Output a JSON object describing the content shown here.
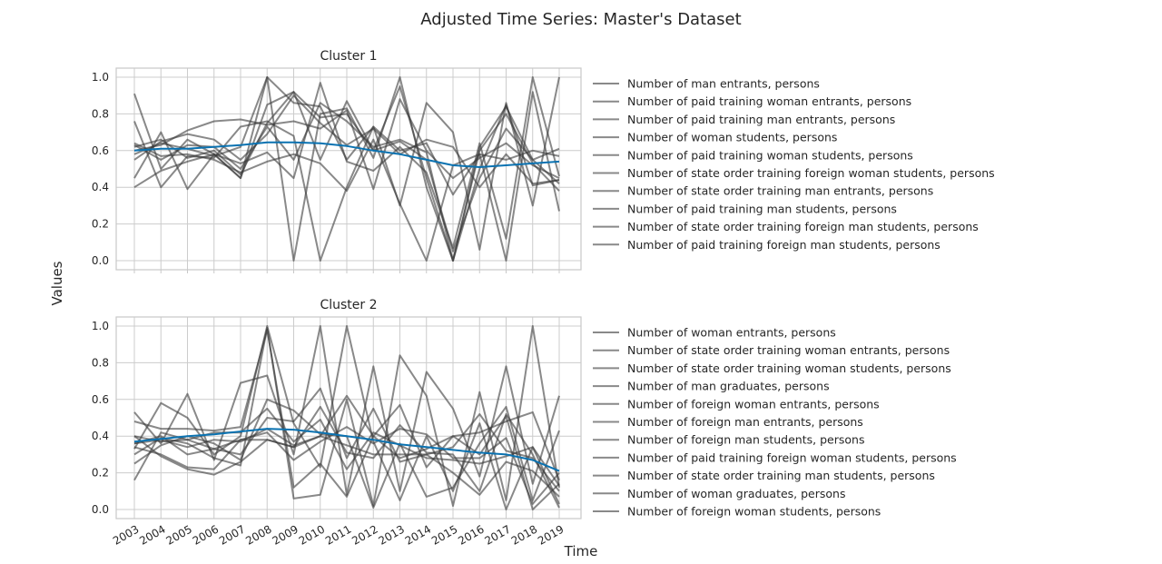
{
  "title": "Adjusted Time Series: Master's Dataset",
  "xlabel": "Time",
  "ylabel": "Values",
  "colors": {
    "series": "#3a3a3a",
    "mean": "#0a72b1",
    "grid": "#cccccc",
    "frame": "#c8c8c8"
  },
  "chart_data": [
    {
      "type": "line",
      "title": "Cluster 1",
      "x": [
        2003,
        2004,
        2005,
        2006,
        2007,
        2008,
        2009,
        2010,
        2011,
        2012,
        2013,
        2014,
        2015,
        2016,
        2017,
        2018,
        2019
      ],
      "xlim": [
        2003,
        2019
      ],
      "ylim": [
        0.0,
        1.0
      ],
      "yticks": [
        0.0,
        0.2,
        0.4,
        0.6,
        0.8,
        1.0
      ],
      "grid": true,
      "legend": "right",
      "series": [
        {
          "name": "Number of man entrants, persons",
          "values": [
            0.62,
            0.66,
            0.56,
            0.6,
            0.47,
            0.75,
            0.92,
            0.78,
            0.8,
            0.6,
            0.65,
            0.55,
            0.05,
            0.45,
            0.72,
            0.55,
            0.61
          ]
        },
        {
          "name": "Number of paid training woman entrants, persons",
          "values": [
            0.45,
            0.7,
            0.39,
            0.58,
            0.45,
            1.0,
            0.0,
            0.8,
            0.83,
            0.56,
            1.0,
            0.4,
            0.0,
            0.6,
            0.8,
            0.53,
            0.38
          ]
        },
        {
          "name": "Number of paid training man entrants, persons",
          "values": [
            0.91,
            0.5,
            0.66,
            0.58,
            0.45,
            0.85,
            0.92,
            0.55,
            0.87,
            0.6,
            0.95,
            0.45,
            0.0,
            0.5,
            0.85,
            0.41,
            0.44
          ]
        },
        {
          "name": "Number of woman students, persons",
          "values": [
            0.76,
            0.4,
            0.57,
            0.56,
            0.73,
            0.76,
            0.68,
            0.0,
            0.4,
            0.73,
            0.3,
            0.86,
            0.7,
            0.06,
            0.86,
            0.3,
            1.0
          ]
        },
        {
          "name": "Number of paid training woman students, persons",
          "values": [
            0.64,
            0.57,
            0.58,
            0.55,
            0.48,
            0.54,
            0.58,
            0.53,
            0.38,
            0.66,
            0.31,
            0.0,
            0.52,
            0.58,
            0.0,
            0.92,
            0.27
          ]
        },
        {
          "name": "Number of state order training foreign woman students, persons",
          "values": [
            0.4,
            0.49,
            0.54,
            0.58,
            0.53,
            0.59,
            0.45,
            0.97,
            0.54,
            0.49,
            0.62,
            0.48,
            0.07,
            0.64,
            0.12,
            1.0,
            0.46
          ]
        },
        {
          "name": "Number of state order training man entrants, persons",
          "values": [
            0.58,
            0.64,
            0.61,
            0.57,
            0.62,
            1.0,
            0.86,
            0.84,
            0.55,
            0.73,
            0.6,
            0.64,
            0.36,
            0.58,
            0.55,
            0.6,
            0.57
          ]
        },
        {
          "name": "Number of paid training man students, persons",
          "values": [
            0.6,
            0.63,
            0.71,
            0.76,
            0.77,
            0.74,
            0.76,
            0.72,
            0.82,
            0.39,
            0.88,
            0.6,
            0.45,
            0.56,
            0.64,
            0.52,
            0.45
          ]
        },
        {
          "name": "Number of state order training foreign man students, persons",
          "values": [
            0.55,
            0.65,
            0.69,
            0.66,
            0.55,
            0.69,
            0.9,
            0.75,
            0.63,
            0.72,
            0.58,
            0.66,
            0.62,
            0.4,
            0.58,
            0.42,
            0.44
          ]
        },
        {
          "name": "Number of paid training foreign man students, persons",
          "values": [
            0.63,
            0.55,
            0.63,
            0.62,
            0.5,
            0.73,
            0.55,
            0.86,
            0.76,
            0.62,
            0.66,
            0.59,
            0.0,
            0.62,
            0.84,
            0.55,
            0.42
          ]
        }
      ],
      "mean": [
        0.6,
        0.61,
        0.61,
        0.62,
        0.63,
        0.645,
        0.645,
        0.64,
        0.625,
        0.6,
        0.58,
        0.55,
        0.52,
        0.51,
        0.52,
        0.53,
        0.54
      ]
    },
    {
      "type": "line",
      "title": "Cluster 2",
      "x": [
        2003,
        2004,
        2005,
        2006,
        2007,
        2008,
        2009,
        2010,
        2011,
        2012,
        2013,
        2014,
        2015,
        2016,
        2017,
        2018,
        2019
      ],
      "xlim": [
        2003,
        2019
      ],
      "ylim": [
        0.0,
        1.0
      ],
      "yticks": [
        0.0,
        0.2,
        0.4,
        0.6,
        0.8,
        1.0
      ],
      "grid": true,
      "legend": "right",
      "series": [
        {
          "name": "Number of woman entrants, persons",
          "values": [
            0.33,
            0.58,
            0.5,
            0.3,
            0.4,
            1.0,
            0.47,
            0.23,
            1.0,
            0.37,
            0.05,
            0.4,
            0.1,
            0.47,
            0.0,
            0.34,
            0.03
          ]
        },
        {
          "name": "Number of state order training woman entrants, persons",
          "values": [
            0.48,
            0.44,
            0.44,
            0.43,
            0.45,
            0.98,
            0.12,
            0.25,
            0.07,
            0.4,
            0.28,
            0.33,
            0.4,
            0.3,
            0.51,
            0.0,
            0.14
          ]
        },
        {
          "name": "Number of state order training woman students, persons",
          "values": [
            0.53,
            0.36,
            0.63,
            0.27,
            0.69,
            0.73,
            0.3,
            1.0,
            0.08,
            0.78,
            0.1,
            0.75,
            0.55,
            0.18,
            0.78,
            0.14,
            0.62
          ]
        },
        {
          "name": "Number of man graduates, persons",
          "values": [
            0.3,
            0.39,
            0.36,
            0.28,
            0.24,
            0.99,
            0.06,
            0.08,
            0.6,
            0.02,
            0.84,
            0.62,
            0.02,
            0.64,
            0.05,
            1.0,
            0.12
          ]
        },
        {
          "name": "Number of foreign woman entrants, persons",
          "values": [
            0.16,
            0.42,
            0.38,
            0.33,
            0.3,
            0.5,
            0.48,
            0.66,
            0.28,
            0.55,
            0.26,
            0.3,
            0.34,
            0.52,
            0.32,
            0.28,
            0.1
          ]
        },
        {
          "name": "Number of foreign man entrants, persons",
          "values": [
            0.36,
            0.38,
            0.34,
            0.38,
            0.37,
            0.44,
            0.35,
            0.4,
            0.62,
            0.4,
            0.57,
            0.23,
            0.4,
            0.42,
            0.48,
            0.53,
            0.16
          ]
        },
        {
          "name": "Number of foreign man students, persons",
          "values": [
            0.25,
            0.35,
            0.4,
            0.36,
            0.27,
            0.6,
            0.54,
            0.41,
            0.4,
            0.01,
            0.36,
            0.07,
            0.12,
            0.36,
            0.56,
            0.05,
            0.43
          ]
        },
        {
          "name": "Number of paid training foreign woman students, persons",
          "values": [
            0.34,
            0.3,
            0.23,
            0.22,
            0.38,
            0.38,
            0.34,
            0.56,
            0.31,
            0.28,
            0.46,
            0.31,
            0.3,
            0.1,
            0.52,
            0.3,
            0.01
          ]
        },
        {
          "name": "Number of state order training man students, persons",
          "values": [
            0.4,
            0.37,
            0.38,
            0.42,
            0.42,
            0.55,
            0.37,
            0.49,
            0.22,
            0.42,
            0.35,
            0.28,
            0.27,
            0.25,
            0.29,
            0.34,
            0.13
          ]
        },
        {
          "name": "Number of woman graduates, persons",
          "values": [
            0.36,
            0.4,
            0.3,
            0.33,
            0.38,
            0.42,
            0.27,
            0.37,
            0.45,
            0.36,
            0.44,
            0.41,
            0.28,
            0.28,
            0.39,
            0.03,
            0.2
          ]
        },
        {
          "name": "Number of foreign woman students, persons",
          "values": [
            0.4,
            0.29,
            0.22,
            0.19,
            0.26,
            0.38,
            0.34,
            0.4,
            0.35,
            0.3,
            0.3,
            0.3,
            0.2,
            0.08,
            0.26,
            0.21,
            0.07
          ]
        }
      ],
      "mean": [
        0.37,
        0.385,
        0.4,
        0.41,
        0.425,
        0.44,
        0.435,
        0.42,
        0.4,
        0.38,
        0.355,
        0.34,
        0.325,
        0.31,
        0.3,
        0.27,
        0.21
      ]
    }
  ]
}
